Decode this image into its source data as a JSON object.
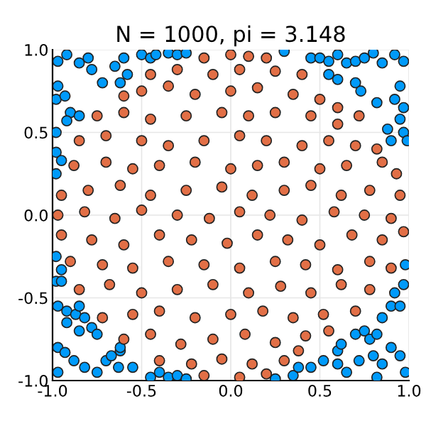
{
  "chart_data": {
    "type": "scatter",
    "title": "N = 1000, pi = 3.148",
    "marker": "circle",
    "grid": true,
    "xlim": [
      -1,
      1
    ],
    "ylim": [
      -1,
      1
    ],
    "xticks": [
      {
        "value": -1,
        "label": "-1.0"
      },
      {
        "value": -0.5,
        "label": "-0.5"
      },
      {
        "value": 0,
        "label": "0.0"
      },
      {
        "value": 0.5,
        "label": "0.5"
      },
      {
        "value": 1,
        "label": "1.0"
      }
    ],
    "yticks": [
      {
        "value": -1,
        "label": "-1.0"
      },
      {
        "value": -0.5,
        "label": "-0.5"
      },
      {
        "value": 0,
        "label": "0.0"
      },
      {
        "value": 0.5,
        "label": "0.5"
      },
      {
        "value": 1,
        "label": "1.0"
      }
    ],
    "series": [
      {
        "color": "#009afa",
        "x": [
          -0.97,
          -0.92,
          -0.85,
          -0.8,
          -0.78,
          -0.97,
          -0.98,
          -0.93,
          -0.9,
          -0.85,
          -0.92,
          -0.98,
          -0.72,
          -0.65,
          -0.62,
          -0.6,
          -0.5,
          -0.45,
          -0.42,
          -0.35,
          -0.3,
          -0.98,
          -0.95,
          -0.98,
          -0.25,
          -0.58,
          0.3,
          0.45,
          0.5,
          0.55,
          0.6,
          0.65,
          0.7,
          0.75,
          0.8,
          0.85,
          0.92,
          0.97,
          0.55,
          0.6,
          0.7,
          0.73,
          0.82,
          0.92,
          0.97,
          0.95,
          0.88,
          0.97,
          0.99,
          0.9,
          0.95,
          -0.98,
          -0.98,
          -0.95,
          -0.95,
          -0.97,
          -0.92,
          -0.87,
          -0.85,
          -0.82,
          -0.78,
          -0.92,
          -0.85,
          -0.97,
          -0.93,
          -0.88,
          -0.82,
          -0.75,
          -0.7,
          -0.67,
          -0.62,
          -0.62,
          -0.55,
          -0.45,
          -0.4,
          -0.35,
          -0.3,
          -0.25,
          -0.97,
          -0.75,
          -0.63,
          0.25,
          0.35,
          0.38,
          0.45,
          0.52,
          0.6,
          0.62,
          0.7,
          0.75,
          0.78,
          0.82,
          0.85,
          0.9,
          0.95,
          0.97,
          0.98,
          0.92,
          0.72,
          0.8,
          0.85,
          0.9,
          0.95,
          0.98,
          0.65,
          0.82,
          0.6
        ],
        "values": [
          0.93,
          0.97,
          0.92,
          0.95,
          0.88,
          0.78,
          0.7,
          0.72,
          0.62,
          0.6,
          0.57,
          0.5,
          0.8,
          0.9,
          0.8,
          0.95,
          0.97,
          0.95,
          0.97,
          0.98,
          0.97,
          0.38,
          0.33,
          0.25,
          0.98,
          0.85,
          0.99,
          0.95,
          0.95,
          0.93,
          0.97,
          0.92,
          0.93,
          0.95,
          0.98,
          0.92,
          0.97,
          0.93,
          0.85,
          0.82,
          0.8,
          0.75,
          0.68,
          0.7,
          0.65,
          0.58,
          0.52,
          0.5,
          0.45,
          0.45,
          0.78,
          -0.25,
          -0.4,
          -0.4,
          -0.33,
          -0.55,
          -0.58,
          -0.6,
          -0.55,
          -0.62,
          -0.68,
          -0.65,
          -0.7,
          -0.8,
          -0.83,
          -0.88,
          -0.92,
          -0.95,
          -0.88,
          -0.85,
          -0.82,
          -0.8,
          -0.92,
          -0.98,
          -0.95,
          -0.98,
          -0.97,
          -0.99,
          -0.95,
          -0.72,
          -0.92,
          -0.99,
          -0.97,
          -0.92,
          -0.92,
          -0.88,
          -0.82,
          -0.78,
          -0.72,
          -0.7,
          -0.75,
          -0.72,
          -0.62,
          -0.55,
          -0.55,
          -0.42,
          -0.3,
          -0.47,
          -0.88,
          -0.85,
          -0.9,
          -0.8,
          -0.85,
          -0.95,
          -0.95,
          -0.98,
          -0.9
        ]
      },
      {
        "color": "#e26f46",
        "x": [
          -0.15,
          0,
          0.1,
          0.2,
          -0.45,
          -0.3,
          -0.1,
          0.05,
          0.25,
          0.4,
          -0.6,
          -0.5,
          -0.35,
          -0.2,
          0,
          0.15,
          0.35,
          0.5,
          0.6,
          -0.75,
          -0.6,
          -0.45,
          -0.25,
          -0.05,
          0.1,
          0.25,
          0.45,
          0.6,
          0.72,
          -0.85,
          -0.7,
          -0.5,
          -0.35,
          -0.15,
          0.05,
          0.2,
          0.4,
          0.55,
          0.7,
          0.82,
          -0.88,
          -0.7,
          -0.55,
          -0.4,
          -0.2,
          0,
          0.15,
          0.3,
          0.5,
          0.65,
          0.85,
          0.93,
          -0.95,
          -0.8,
          -0.62,
          -0.45,
          -0.25,
          -0.05,
          0.12,
          0.3,
          0.45,
          0.62,
          0.78,
          0.95,
          -0.97,
          -0.82,
          -0.65,
          -0.5,
          -0.3,
          -0.12,
          0.05,
          0.22,
          0.4,
          0.58,
          0.75,
          0.9,
          -0.95,
          -0.78,
          -0.6,
          -0.4,
          -0.22,
          -0.02,
          0.15,
          0.32,
          0.5,
          0.68,
          0.85,
          0.97,
          -0.9,
          -0.72,
          -0.55,
          -0.35,
          -0.15,
          0.05,
          0.25,
          0.42,
          0.6,
          0.78,
          0.9,
          -0.85,
          -0.68,
          -0.5,
          -0.3,
          -0.1,
          0.1,
          0.28,
          0.45,
          0.62,
          0.78,
          -0.72,
          -0.55,
          -0.4,
          -0.2,
          0,
          0.18,
          0.35,
          0.52,
          0.7,
          -0.6,
          -0.45,
          -0.28,
          -0.1,
          0.08,
          0.25,
          0.42,
          0.55,
          -0.4,
          -0.22,
          -0.05,
          0.12,
          0.3,
          0.38,
          -0.15,
          0.05,
          0.2
        ],
        "values": [
          0.95,
          0.97,
          0.96,
          0.95,
          0.85,
          0.88,
          0.85,
          0.88,
          0.87,
          0.85,
          0.72,
          0.75,
          0.78,
          0.73,
          0.75,
          0.77,
          0.73,
          0.7,
          0.65,
          0.6,
          0.62,
          0.58,
          0.6,
          0.62,
          0.6,
          0.62,
          0.6,
          0.55,
          0.6,
          0.45,
          0.48,
          0.45,
          0.42,
          0.45,
          0.48,
          0.45,
          0.42,
          0.45,
          0.42,
          0.4,
          0.3,
          0.32,
          0.28,
          0.3,
          0.32,
          0.28,
          0.3,
          0.32,
          0.28,
          0.3,
          0.32,
          0.25,
          0.12,
          0.15,
          0.18,
          0.12,
          0.15,
          0.17,
          0.12,
          0.15,
          0.18,
          0.12,
          0.15,
          0.12,
          0,
          0.02,
          -0.02,
          0.03,
          0,
          -0.02,
          0.02,
          0,
          -0.03,
          0.02,
          0,
          -0.02,
          -0.12,
          -0.15,
          -0.18,
          -0.12,
          -0.15,
          -0.17,
          -0.12,
          -0.15,
          -0.18,
          -0.12,
          -0.15,
          -0.1,
          -0.28,
          -0.3,
          -0.32,
          -0.28,
          -0.3,
          -0.32,
          -0.28,
          -0.3,
          -0.33,
          -0.28,
          -0.32,
          -0.45,
          -0.42,
          -0.47,
          -0.45,
          -0.42,
          -0.47,
          -0.43,
          -0.47,
          -0.42,
          -0.45,
          -0.62,
          -0.6,
          -0.58,
          -0.62,
          -0.6,
          -0.58,
          -0.62,
          -0.6,
          -0.58,
          -0.75,
          -0.72,
          -0.78,
          -0.75,
          -0.72,
          -0.77,
          -0.73,
          -0.7,
          -0.88,
          -0.9,
          -0.87,
          -0.9,
          -0.88,
          -0.82,
          -0.97,
          -0.98,
          -0.96
        ]
      }
    ]
  }
}
